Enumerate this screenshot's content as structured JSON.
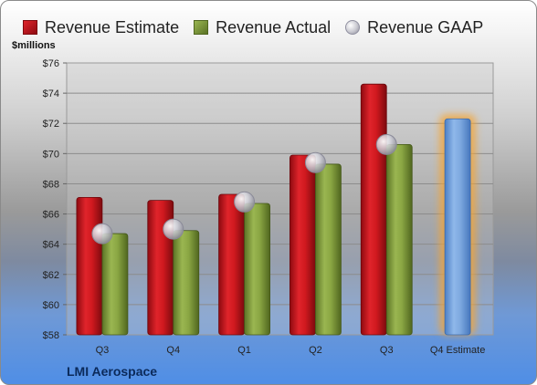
{
  "chart_data": {
    "type": "bar",
    "unit_label": "$millions",
    "company": "LMI Aerospace",
    "categories": [
      "Q3",
      "Q4",
      "Q1",
      "Q2",
      "Q3",
      "Q4 Estimate"
    ],
    "ylim": [
      58,
      76
    ],
    "yticks": [
      "$58",
      "$60",
      "$62",
      "$64",
      "$66",
      "$68",
      "$70",
      "$72",
      "$74",
      "$76"
    ],
    "ytick_values": [
      58,
      60,
      62,
      64,
      66,
      68,
      70,
      72,
      74,
      76
    ],
    "grid": true,
    "legend_position": "top",
    "series": [
      {
        "name": "Revenue Estimate",
        "kind": "bar",
        "color": "#c0141b",
        "values": [
          67.1,
          66.9,
          67.3,
          69.9,
          74.6,
          null
        ]
      },
      {
        "name": "Revenue Actual",
        "kind": "bar",
        "color": "#7f9a3a",
        "values": [
          64.7,
          64.9,
          66.7,
          69.3,
          70.6,
          null
        ]
      },
      {
        "name": "Revenue GAAP",
        "kind": "marker",
        "color": "#c8c8d0",
        "values": [
          64.7,
          65.0,
          66.8,
          69.4,
          70.6,
          null
        ]
      },
      {
        "name": "Q4 Estimate",
        "kind": "bar",
        "color": "#6f9fd8",
        "highlight": "#f5a431",
        "values": [
          null,
          null,
          null,
          null,
          null,
          72.3
        ]
      }
    ]
  }
}
